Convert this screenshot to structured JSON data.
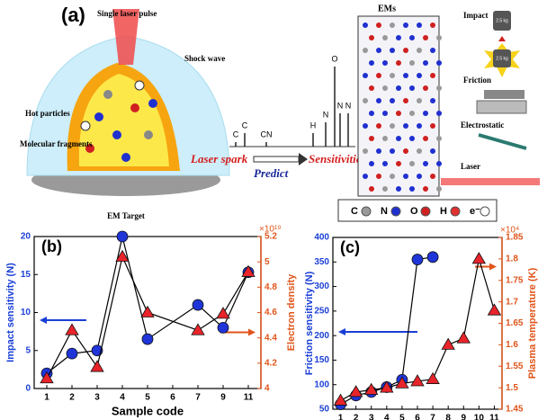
{
  "panel_a": {
    "label": "(a)",
    "laser_pulse": "Single laser pulse",
    "shock_wave": "Shock wave",
    "hot_particles": "Hot particles",
    "fragments": "Molecular fragments",
    "target": "EM Target",
    "laser_spark": "Laser spark",
    "predict": "Predict",
    "sensitivities": "Sensitivities",
    "peaks": [
      "C",
      "C",
      "CN",
      "H",
      "N",
      "O",
      "N",
      "N"
    ],
    "ems": "EMs",
    "impact": "Impact",
    "friction": "Friction",
    "electrostatic": "Electrostatic",
    "laser": "Laser",
    "weight": "2.5 kg",
    "legend": [
      "C",
      "N",
      "O",
      "H",
      "e⁻"
    ]
  },
  "chart_data": [
    {
      "type": "line",
      "panel": "(b)",
      "x_label": "Sample code",
      "y_label": "Impact sensitivity (N)",
      "y2_label": "Electron density",
      "y2_multiplier": "×10¹⁹",
      "categories": [
        "1",
        "2",
        "3",
        "4",
        "5",
        "6",
        "7",
        "9",
        "11"
      ],
      "ylim": [
        0,
        20
      ],
      "yticks": [
        0,
        5,
        10,
        15,
        20
      ],
      "y2lim": [
        4,
        5.2
      ],
      "y2ticks": [
        4,
        4.2,
        4.4,
        4.6,
        4.8,
        5,
        5.2
      ],
      "y_color": "#1a3fd6",
      "y2_color": "#e0541a",
      "series": [
        {
          "color": "#1f35d8",
          "marker": "circle",
          "x": [
            "1",
            "2",
            "3",
            "4",
            "5",
            "7",
            "9",
            "11"
          ],
          "values": [
            2,
            4.6,
            5,
            20,
            6.5,
            11,
            8,
            15.3
          ]
        },
        {
          "color": "#e8242a",
          "marker": "triangle",
          "axis": "y2",
          "x": [
            "1",
            "2",
            "3",
            "4",
            "5",
            "7",
            "9",
            "11"
          ],
          "values": [
            4.08,
            4.46,
            4.17,
            5.04,
            4.6,
            4.46,
            4.59,
            4.92
          ]
        }
      ]
    },
    {
      "type": "line",
      "panel": "(c)",
      "x_label": "Sample code",
      "y_label": "Friction sensitivity (N)",
      "y2_label": "Plasma temperature (K)",
      "y2_multiplier": "×10⁴",
      "categories": [
        "1",
        "2",
        "3",
        "4",
        "5",
        "6",
        "7",
        "8",
        "9",
        "10",
        "11"
      ],
      "ylim": [
        50,
        400
      ],
      "yticks": [
        50,
        100,
        150,
        200,
        250,
        300,
        350,
        400
      ],
      "y2lim": [
        1.45,
        1.85
      ],
      "y2ticks": [
        1.45,
        1.5,
        1.55,
        1.6,
        1.65,
        1.7,
        1.75,
        1.8,
        1.85
      ],
      "y_color": "#1a3fd6",
      "y2_color": "#e0541a",
      "series": [
        {
          "color": "#1f35d8",
          "marker": "circle",
          "x": [
            "1",
            "2",
            "3",
            "4",
            "5",
            "6",
            "7"
          ],
          "values": [
            60,
            78,
            85,
            95,
            110,
            355,
            360
          ]
        },
        {
          "color": "#e8242a",
          "marker": "triangle",
          "axis": "y2",
          "x": [
            "1",
            "2",
            "3",
            "4",
            "5",
            "6",
            "7",
            "8",
            "9",
            "10",
            "11"
          ],
          "values": [
            1.47,
            1.49,
            1.495,
            1.5,
            1.51,
            1.515,
            1.52,
            1.6,
            1.615,
            1.8,
            1.68
          ]
        }
      ]
    }
  ]
}
